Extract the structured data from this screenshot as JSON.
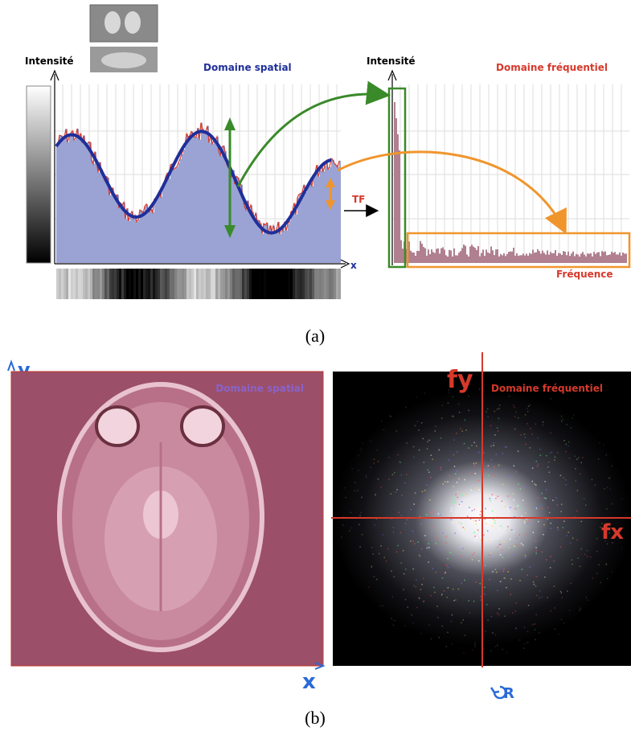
{
  "panel_a": {
    "spatial_title": "Domaine spatial",
    "intensity_left": "Intensité",
    "intensity_right": "Intensité",
    "x_axis": "x",
    "tf_label": "TF",
    "frequency_title": "Domaine fréquentiel",
    "frequency_axis": "Fréquence",
    "caption": "(a)"
  },
  "panel_b": {
    "y_label": "y",
    "x_label": "x",
    "spatial_title": "Domaine spatial",
    "fy_label": "fy",
    "fx_label": "fx",
    "frequency_title": "Domaine fréquentiel",
    "r_label": "R",
    "caption": "(b)"
  },
  "colors": {
    "navy": "#1f2f9a",
    "red": "#d6392b",
    "green": "#3a8a2a",
    "orange": "#f0952c",
    "histogram": "#9aa3d3",
    "mri_bg": "#9c4f68",
    "blue_axis": "#2a6ad8"
  },
  "icons": [
    "rotation-arrow-icon"
  ]
}
